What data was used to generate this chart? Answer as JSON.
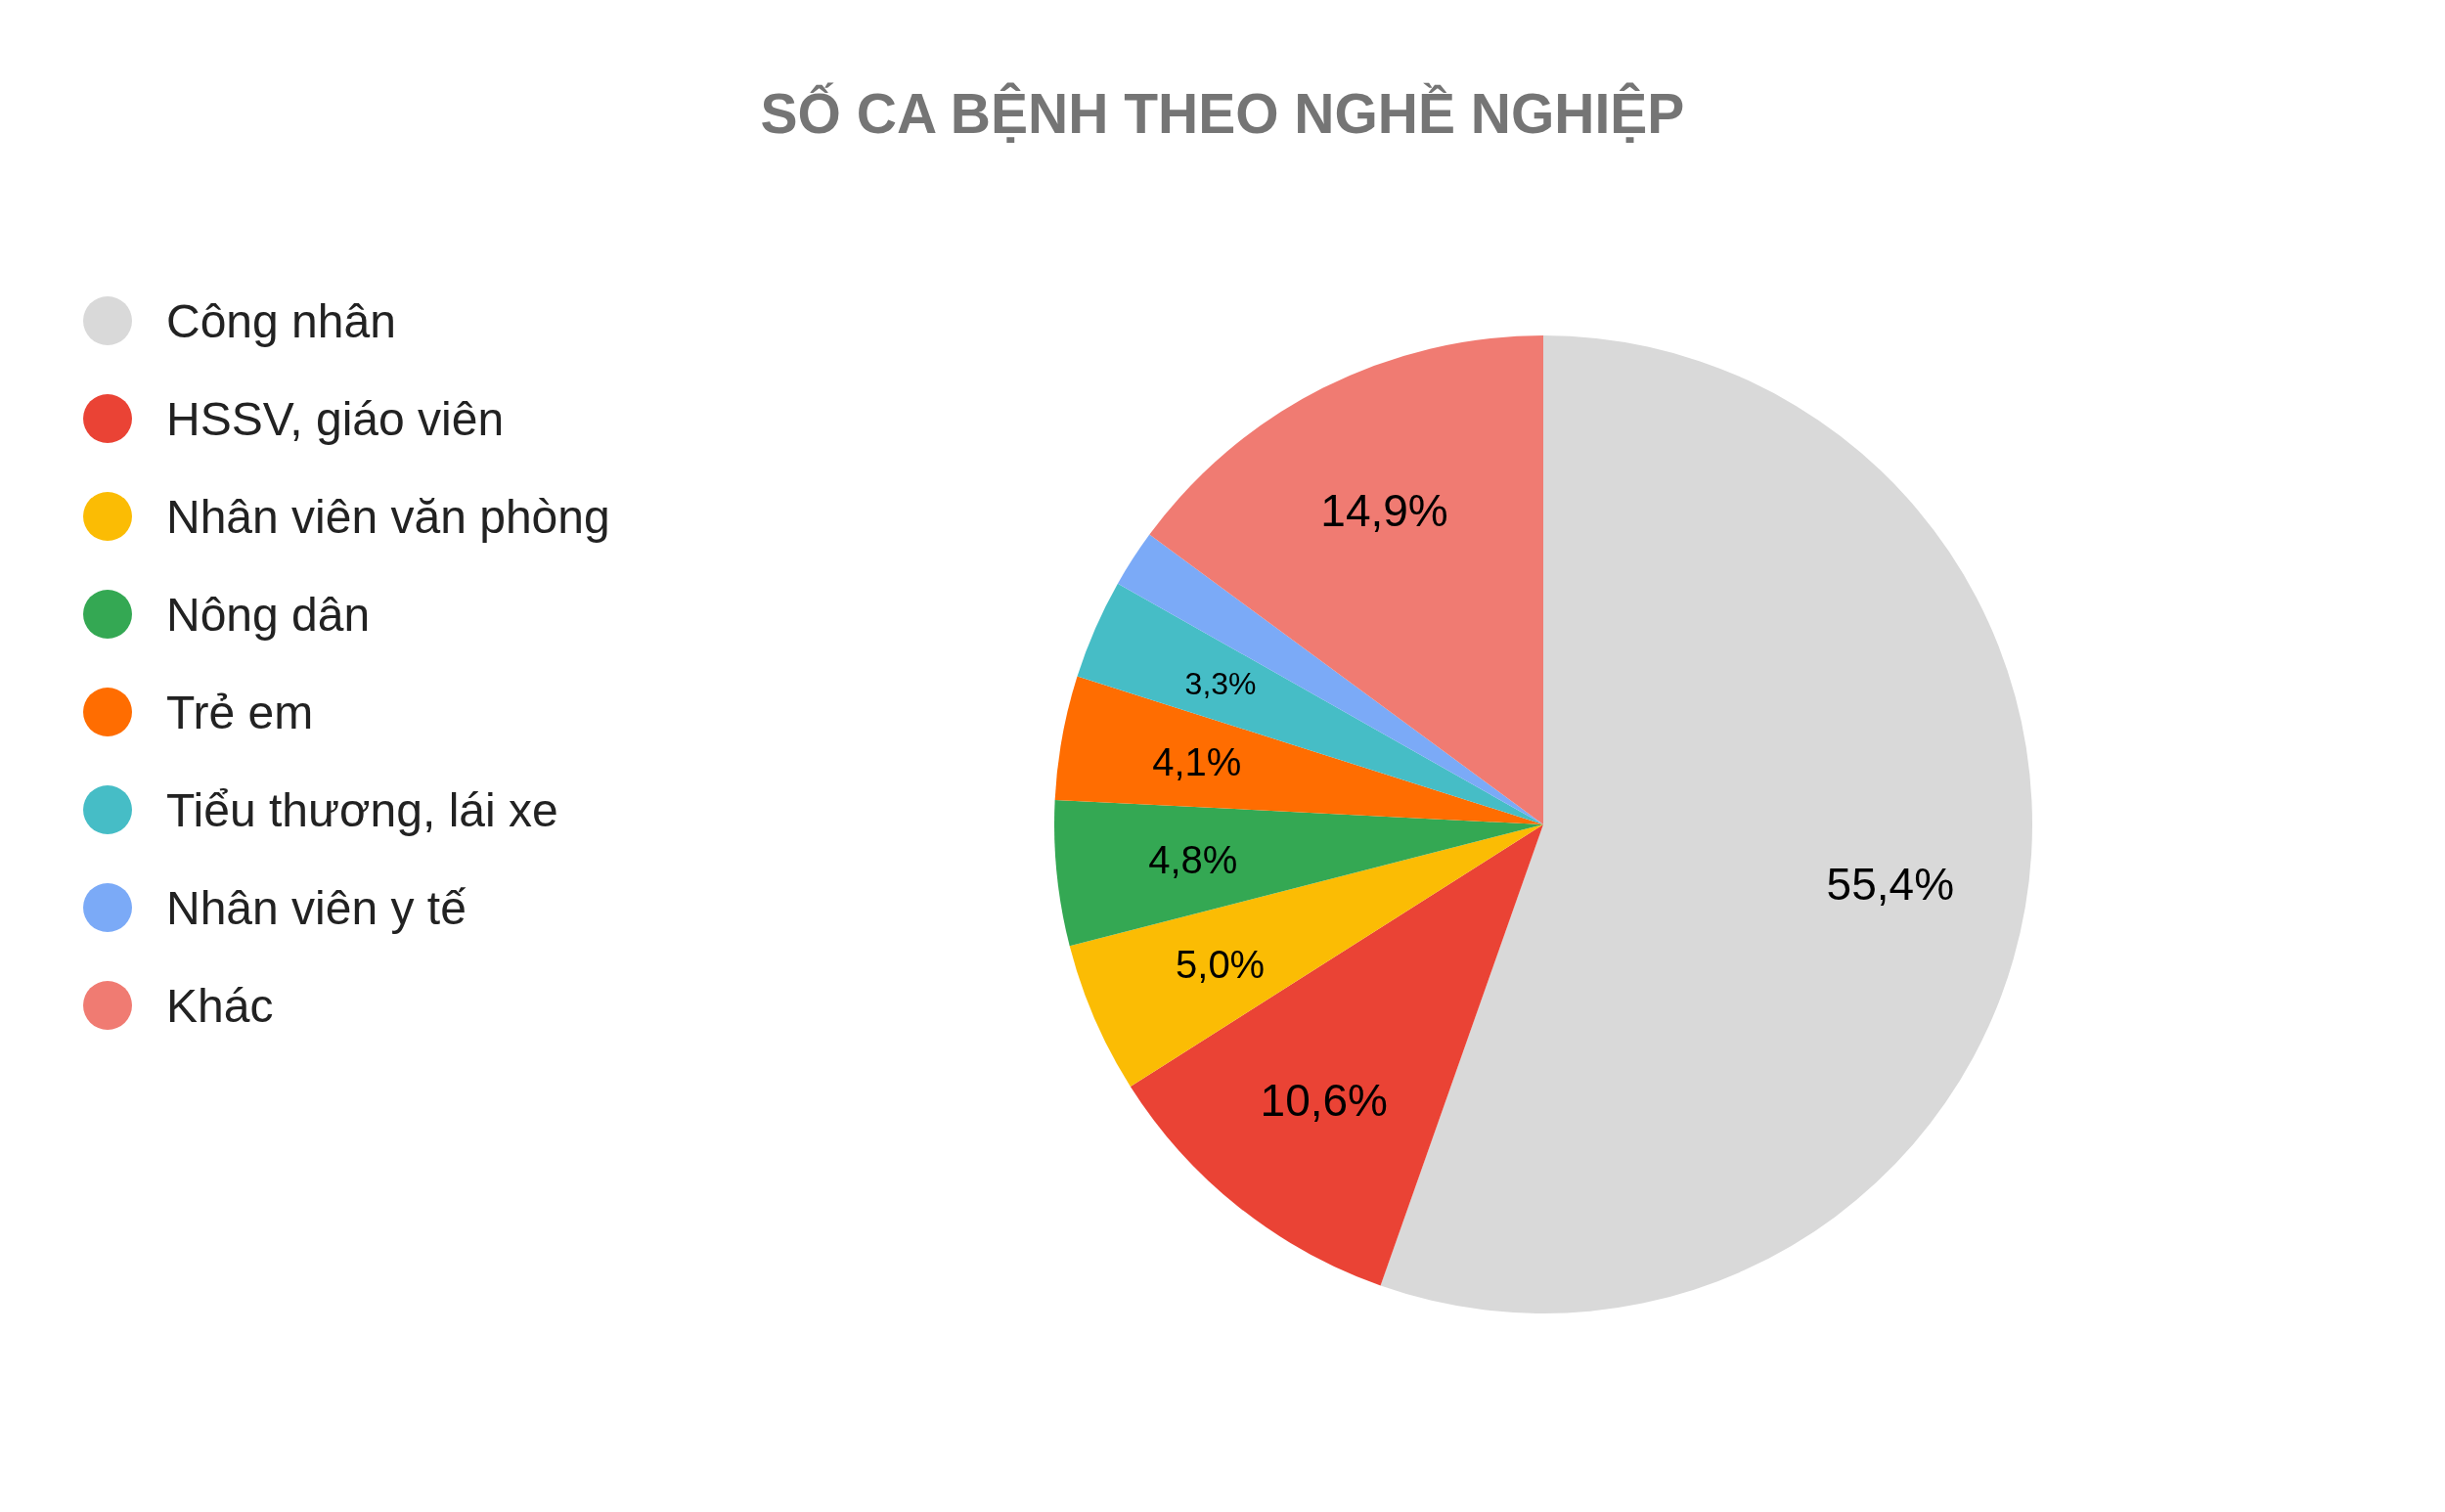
{
  "chart_data": {
    "type": "pie",
    "title": "SỐ CA BỆNH THEO NGHỀ NGHIỆP",
    "categories": [
      "Công nhân",
      "HSSV, giáo viên",
      "Nhân viên văn phòng",
      "Nông dân",
      "Trẻ em",
      "Tiểu thương, lái xe",
      "Nhân viên y tế",
      "Khác"
    ],
    "values": [
      55.4,
      10.6,
      5.0,
      4.8,
      4.1,
      3.3,
      1.9,
      14.9
    ],
    "colors": [
      "#d9d9d9",
      "#ea4335",
      "#fbbc04",
      "#34a853",
      "#ff6d01",
      "#46bdc6",
      "#7baaf7",
      "#f07b72"
    ],
    "value_labels": [
      "55,4%",
      "10,6%",
      "5,0%",
      "4,8%",
      "4,1%",
      "3,3%",
      null,
      "14,9%"
    ],
    "legend": "top left"
  }
}
